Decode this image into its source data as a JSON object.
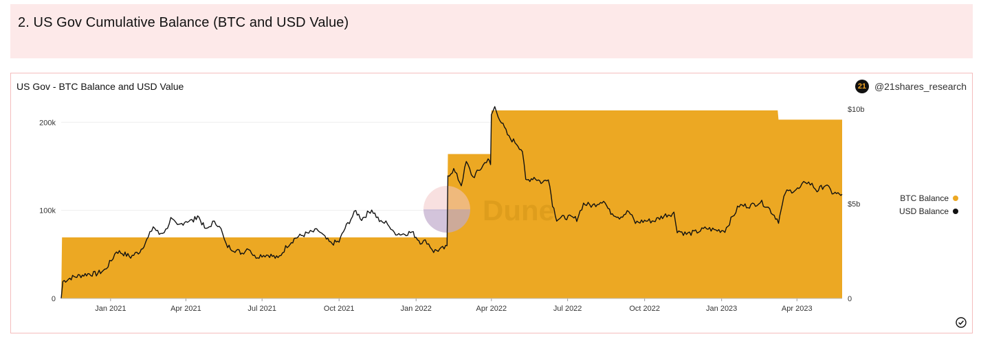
{
  "header": {
    "title": "2. US Gov Cumulative Balance (BTC and USD Value)"
  },
  "card": {
    "title": "US Gov - BTC Balance and USD Value",
    "author": "@21shares_research",
    "author_badge": "21",
    "watermark": "Dune"
  },
  "colors": {
    "btc": "#eca823",
    "usd": "#111111",
    "grid": "#eeeeee"
  },
  "chart_data": {
    "type": "area",
    "title": "US Gov - BTC Balance and USD Value",
    "x_ticks": [
      "Jan 2021",
      "Apr 2021",
      "Jul 2021",
      "Oct 2021",
      "Jan 2022",
      "Apr 2022",
      "Jul 2022",
      "Oct 2022",
      "Jan 2023",
      "Apr 2023"
    ],
    "y_left": {
      "ticks": [
        "0",
        "100k",
        "200k"
      ],
      "range": [
        0,
        215000
      ]
    },
    "y_right": {
      "ticks": [
        "0",
        "$5b",
        "$10b"
      ],
      "range": [
        0,
        10000000000
      ]
    },
    "x_range": [
      "2020-11-03",
      "2023-05-25"
    ],
    "legend_position": "right",
    "series": [
      {
        "name": "BTC Balance",
        "axis": "left",
        "kind": "step-area",
        "points": [
          [
            "2020-11-03",
            0
          ],
          [
            "2020-11-04",
            69370
          ],
          [
            "2022-02-07",
            69370
          ],
          [
            "2022-02-08",
            164000
          ],
          [
            "2022-03-31",
            164000
          ],
          [
            "2022-04-01",
            213500
          ],
          [
            "2023-03-09",
            213500
          ],
          [
            "2023-03-10",
            203000
          ],
          [
            "2023-05-25",
            203000
          ]
        ]
      },
      {
        "name": "USD Balance",
        "axis": "right",
        "kind": "line",
        "points": [
          [
            "2020-11-03",
            0.0
          ],
          [
            "2020-11-05",
            0.9
          ],
          [
            "2020-11-15",
            1.1
          ],
          [
            "2020-11-25",
            1.2
          ],
          [
            "2020-12-05",
            1.3
          ],
          [
            "2020-12-15",
            1.3
          ],
          [
            "2020-12-25",
            1.5
          ],
          [
            "2021-01-02",
            2.0
          ],
          [
            "2021-01-08",
            2.5
          ],
          [
            "2021-01-15",
            2.4
          ],
          [
            "2021-01-25",
            2.2
          ],
          [
            "2021-02-05",
            2.5
          ],
          [
            "2021-02-15",
            3.2
          ],
          [
            "2021-02-21",
            3.8
          ],
          [
            "2021-02-28",
            3.4
          ],
          [
            "2021-03-08",
            3.6
          ],
          [
            "2021-03-14",
            4.2
          ],
          [
            "2021-03-22",
            3.8
          ],
          [
            "2021-04-01",
            4.1
          ],
          [
            "2021-04-10",
            4.1
          ],
          [
            "2021-04-15",
            4.4
          ],
          [
            "2021-04-25",
            3.6
          ],
          [
            "2021-05-03",
            4.0
          ],
          [
            "2021-05-11",
            3.9
          ],
          [
            "2021-05-19",
            2.8
          ],
          [
            "2021-05-28",
            2.6
          ],
          [
            "2021-06-07",
            2.4
          ],
          [
            "2021-06-15",
            2.7
          ],
          [
            "2021-06-22",
            2.2
          ],
          [
            "2021-07-01",
            2.3
          ],
          [
            "2021-07-10",
            2.3
          ],
          [
            "2021-07-20",
            2.1
          ],
          [
            "2021-07-31",
            2.8
          ],
          [
            "2021-08-10",
            3.2
          ],
          [
            "2021-08-22",
            3.4
          ],
          [
            "2021-09-06",
            3.6
          ],
          [
            "2021-09-14",
            3.2
          ],
          [
            "2021-09-21",
            2.9
          ],
          [
            "2021-10-01",
            3.0
          ],
          [
            "2021-10-08",
            3.7
          ],
          [
            "2021-10-15",
            4.2
          ],
          [
            "2021-10-21",
            4.6
          ],
          [
            "2021-10-28",
            4.2
          ],
          [
            "2021-11-09",
            4.7
          ],
          [
            "2021-11-20",
            4.0
          ],
          [
            "2021-11-28",
            4.0
          ],
          [
            "2021-12-04",
            3.5
          ],
          [
            "2021-12-15",
            3.4
          ],
          [
            "2021-12-27",
            3.5
          ],
          [
            "2022-01-06",
            3.0
          ],
          [
            "2022-01-14",
            3.0
          ],
          [
            "2022-01-22",
            2.5
          ],
          [
            "2022-01-31",
            2.6
          ],
          [
            "2022-02-07",
            2.7
          ],
          [
            "2022-02-08",
            6.5
          ],
          [
            "2022-02-15",
            6.8
          ],
          [
            "2022-02-24",
            6.0
          ],
          [
            "2022-03-02",
            7.2
          ],
          [
            "2022-03-10",
            6.4
          ],
          [
            "2022-03-20",
            6.9
          ],
          [
            "2022-03-28",
            7.4
          ],
          [
            "2022-03-31",
            7.0
          ],
          [
            "2022-04-01",
            9.7
          ],
          [
            "2022-04-05",
            10.1
          ],
          [
            "2022-04-13",
            9.3
          ],
          [
            "2022-04-22",
            8.5
          ],
          [
            "2022-05-01",
            8.2
          ],
          [
            "2022-05-08",
            7.8
          ],
          [
            "2022-05-12",
            6.2
          ],
          [
            "2022-05-22",
            6.4
          ],
          [
            "2022-06-01",
            6.1
          ],
          [
            "2022-06-08",
            6.4
          ],
          [
            "2022-06-13",
            5.0
          ],
          [
            "2022-06-18",
            4.2
          ],
          [
            "2022-06-30",
            4.3
          ],
          [
            "2022-07-12",
            4.2
          ],
          [
            "2022-07-20",
            5.0
          ],
          [
            "2022-07-31",
            4.9
          ],
          [
            "2022-08-13",
            5.2
          ],
          [
            "2022-08-20",
            4.6
          ],
          [
            "2022-09-01",
            4.3
          ],
          [
            "2022-09-12",
            4.6
          ],
          [
            "2022-09-20",
            4.0
          ],
          [
            "2022-10-01",
            4.1
          ],
          [
            "2022-10-12",
            4.1
          ],
          [
            "2022-10-26",
            4.4
          ],
          [
            "2022-11-05",
            4.5
          ],
          [
            "2022-11-09",
            3.6
          ],
          [
            "2022-11-20",
            3.4
          ],
          [
            "2022-12-01",
            3.5
          ],
          [
            "2022-12-14",
            3.7
          ],
          [
            "2022-12-25",
            3.6
          ],
          [
            "2023-01-05",
            3.6
          ],
          [
            "2023-01-14",
            4.3
          ],
          [
            "2023-01-22",
            4.9
          ],
          [
            "2023-02-05",
            4.9
          ],
          [
            "2023-02-16",
            5.1
          ],
          [
            "2023-02-24",
            4.9
          ],
          [
            "2023-03-03",
            4.5
          ],
          [
            "2023-03-10",
            4.1
          ],
          [
            "2023-03-13",
            4.6
          ],
          [
            "2023-03-18",
            5.6
          ],
          [
            "2023-03-26",
            5.7
          ],
          [
            "2023-04-05",
            5.8
          ],
          [
            "2023-04-11",
            6.2
          ],
          [
            "2023-04-19",
            6.0
          ],
          [
            "2023-04-25",
            5.7
          ],
          [
            "2023-05-05",
            6.0
          ],
          [
            "2023-05-13",
            5.6
          ],
          [
            "2023-05-20",
            5.5
          ],
          [
            "2023-05-25",
            5.5
          ]
        ],
        "unit": "$b"
      }
    ]
  }
}
